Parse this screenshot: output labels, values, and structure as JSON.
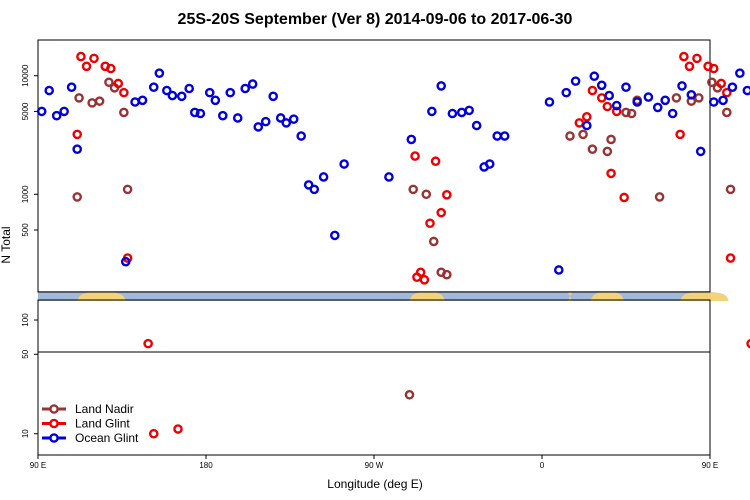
{
  "chart_data": {
    "type": "scatter",
    "title": "25S-20S September (Ver 8)   2014-09-06 to 2017-06-30",
    "xlabel": "Longitude (deg E)",
    "ylabel": "N Total",
    "xlim": [
      90,
      450
    ],
    "x_ticks": [
      {
        "value": 90,
        "label": "90 E"
      },
      {
        "value": 180,
        "label": "180"
      },
      {
        "value": 270,
        "label": "90 W"
      },
      {
        "value": 360,
        "label": "0"
      },
      {
        "value": 450,
        "label": "90 E"
      },
      {
        "value": 540,
        "label": "180"
      }
    ],
    "upper_y_ticks": [
      {
        "value": 10000,
        "label": "10000"
      },
      {
        "value": 5000,
        "label": "5000"
      },
      {
        "value": 1000,
        "label": "1000"
      },
      {
        "value": 500,
        "label": "500"
      }
    ],
    "lower_y_ticks": [
      {
        "value": 100,
        "label": "100"
      },
      {
        "value": 50,
        "label": "50"
      },
      {
        "value": 10,
        "label": "10"
      }
    ],
    "legend": {
      "position": "bottom-left",
      "entries": [
        {
          "label": "Land Nadir",
          "color": "#993333"
        },
        {
          "label": "Land Glint",
          "color": "#ee0000"
        },
        {
          "label": "Ocean Glint",
          "color": "#0000dd"
        }
      ]
    },
    "series": [
      {
        "name": "Land Nadir",
        "color": "#993333",
        "points": [
          [
            111,
            950
          ],
          [
            112,
            6500
          ],
          [
            119,
            5900
          ],
          [
            123,
            6100
          ],
          [
            128,
            8800
          ],
          [
            131,
            7900
          ],
          [
            136,
            4900
          ],
          [
            138,
            1100
          ],
          [
            291,
            1100
          ],
          [
            298,
            1000
          ],
          [
            302,
            400
          ],
          [
            306,
            220
          ],
          [
            309,
            210
          ],
          [
            375,
            3100
          ],
          [
            382,
            3200
          ],
          [
            387,
            2400
          ],
          [
            395,
            2300
          ],
          [
            397,
            2900
          ],
          [
            405,
            4900
          ],
          [
            408,
            4800
          ],
          [
            411,
            6200
          ],
          [
            423,
            950
          ],
          [
            432,
            6500
          ],
          [
            440,
            6100
          ],
          [
            444,
            6500
          ],
          [
            451,
            8800
          ],
          [
            454,
            7900
          ],
          [
            459,
            4900
          ],
          [
            461,
            1100
          ],
          [
            289,
            22
          ]
        ]
      },
      {
        "name": "Land Glint",
        "color": "#ee0000",
        "points": [
          [
            111,
            3200
          ],
          [
            113,
            14500
          ],
          [
            116,
            12000
          ],
          [
            120,
            14000
          ],
          [
            126,
            12000
          ],
          [
            129,
            11500
          ],
          [
            133,
            8600
          ],
          [
            136,
            7200
          ],
          [
            138,
            290
          ],
          [
            292,
            2100
          ],
          [
            293,
            200
          ],
          [
            295,
            220
          ],
          [
            297,
            190
          ],
          [
            300,
            570
          ],
          [
            303,
            1900
          ],
          [
            306,
            700
          ],
          [
            309,
            990
          ],
          [
            380,
            4000
          ],
          [
            384,
            4500
          ],
          [
            387,
            7500
          ],
          [
            392,
            6500
          ],
          [
            395,
            5500
          ],
          [
            397,
            1500
          ],
          [
            400,
            5000
          ],
          [
            404,
            940
          ],
          [
            434,
            3200
          ],
          [
            436,
            14500
          ],
          [
            439,
            12000
          ],
          [
            443,
            14000
          ],
          [
            449,
            12000
          ],
          [
            452,
            11500
          ],
          [
            456,
            8600
          ],
          [
            459,
            7200
          ],
          [
            461,
            290
          ],
          [
            149,
            62
          ],
          [
            165,
            11
          ],
          [
            152,
            10
          ],
          [
            472,
            62
          ],
          [
            475,
            10
          ]
        ]
      },
      {
        "name": "Ocean Glint",
        "color": "#0000dd",
        "points": [
          [
            92,
            5000
          ],
          [
            96,
            7500
          ],
          [
            100,
            4600
          ],
          [
            104,
            5000
          ],
          [
            108,
            8000
          ],
          [
            111,
            2400
          ],
          [
            137,
            270
          ],
          [
            142,
            6000
          ],
          [
            146,
            6200
          ],
          [
            152,
            8000
          ],
          [
            155,
            10500
          ],
          [
            159,
            7500
          ],
          [
            162,
            6800
          ],
          [
            167,
            6700
          ],
          [
            171,
            7800
          ],
          [
            174,
            4900
          ],
          [
            177,
            4800
          ],
          [
            182,
            7200
          ],
          [
            185,
            6200
          ],
          [
            189,
            4600
          ],
          [
            193,
            7200
          ],
          [
            197,
            4400
          ],
          [
            201,
            7800
          ],
          [
            205,
            8500
          ],
          [
            208,
            3700
          ],
          [
            212,
            4100
          ],
          [
            216,
            6700
          ],
          [
            220,
            4400
          ],
          [
            223,
            4000
          ],
          [
            227,
            4300
          ],
          [
            231,
            3100
          ],
          [
            235,
            1200
          ],
          [
            238,
            1100
          ],
          [
            243,
            1400
          ],
          [
            249,
            450
          ],
          [
            254,
            1800
          ],
          [
            278,
            1400
          ],
          [
            290,
            2900
          ],
          [
            301,
            5000
          ],
          [
            306,
            8200
          ],
          [
            312,
            4800
          ],
          [
            317,
            4900
          ],
          [
            321,
            5100
          ],
          [
            325,
            3800
          ],
          [
            329,
            1700
          ],
          [
            332,
            1800
          ],
          [
            336,
            3100
          ],
          [
            340,
            3100
          ],
          [
            364,
            6000
          ],
          [
            369,
            230
          ],
          [
            373,
            7200
          ],
          [
            378,
            9000
          ],
          [
            384,
            3800
          ],
          [
            388,
            9900
          ],
          [
            392,
            8300
          ],
          [
            396,
            6800
          ],
          [
            400,
            5600
          ],
          [
            405,
            8000
          ],
          [
            411,
            6000
          ],
          [
            417,
            6600
          ],
          [
            422,
            5400
          ],
          [
            426,
            6200
          ],
          [
            430,
            4800
          ],
          [
            435,
            8200
          ],
          [
            440,
            6900
          ],
          [
            445,
            2300
          ],
          [
            452,
            6000
          ],
          [
            457,
            6200
          ],
          [
            462,
            8000
          ],
          [
            466,
            10500
          ],
          [
            470,
            7500
          ],
          [
            474,
            6500
          ],
          [
            476,
            270
          ],
          [
            477,
            6000
          ]
        ]
      }
    ]
  }
}
